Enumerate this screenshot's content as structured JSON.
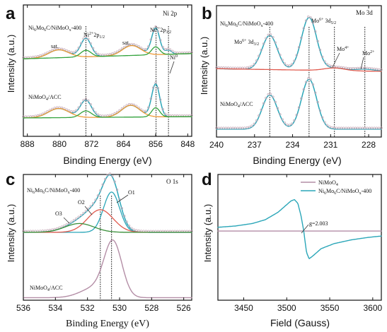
{
  "chart_data": [
    {
      "letter": "a",
      "type": "line",
      "title": "Ni 2p",
      "xlabel": "Binding Energy (eV)",
      "ylabel": "Intensity (a.u.)",
      "xlim": [
        889,
        847
      ],
      "xticks": [
        888,
        880,
        872,
        864,
        856,
        848
      ],
      "ylim": [
        0,
        1
      ],
      "legend": "none",
      "sample_labels": [
        "Ni6Mo6C/NiMoOx-400",
        "NiMoO4/ACC"
      ],
      "annotations": [
        "sat.",
        "Ni2+2p1/2",
        "sat.",
        "Ni2+2p3/2",
        "Ni0"
      ],
      "ref_lines": [
        873.4,
        855.9,
        852.8
      ],
      "series": [
        {
          "name": "Top fit",
          "kind": "fit",
          "color": "#2aa6b8",
          "baseline": [
            [
              889,
              0.59
            ],
            [
              879,
              0.6
            ],
            [
              869,
              0.61
            ],
            [
              860,
              0.62
            ],
            [
              847,
              0.63
            ]
          ],
          "peaks": [
            [
              880.2,
              0.06,
              2.5
            ],
            [
              873.4,
              0.14,
              1.3
            ],
            [
              862.0,
              0.075,
              2.3
            ],
            [
              856.0,
              0.2,
              1.0
            ],
            [
              852.8,
              0.03,
              0.8
            ]
          ]
        },
        {
          "name": "Top sat.",
          "kind": "component",
          "color": "#ee9a36",
          "baseline": [
            [
              889,
              0.59
            ],
            [
              847,
              0.63
            ]
          ],
          "peaks": [
            [
              880.2,
              0.06,
              2.5
            ],
            [
              862.0,
              0.075,
              2.3
            ]
          ]
        },
        {
          "name": "Top Ni2+",
          "kind": "component",
          "color": "#33a33d",
          "baseline": [
            [
              889,
              0.59
            ],
            [
              847,
              0.63
            ]
          ],
          "peaks": [
            [
              873.4,
              0.05,
              1.3
            ],
            [
              856.0,
              0.06,
              1.0
            ]
          ]
        },
        {
          "name": "Bottom fit",
          "kind": "fit",
          "color": "#2aa6b8",
          "baseline": [
            [
              889,
              0.14
            ],
            [
              847,
              0.15
            ]
          ],
          "peaks": [
            [
              880.2,
              0.07,
              2.6
            ],
            [
              873.4,
              0.13,
              1.4
            ],
            [
              862.2,
              0.09,
              2.3
            ],
            [
              856.0,
              0.25,
              1.0
            ]
          ]
        },
        {
          "name": "Bottom sat.",
          "kind": "component",
          "color": "#ee9a36",
          "baseline": [
            [
              889,
              0.14
            ],
            [
              847,
              0.15
            ]
          ],
          "peaks": [
            [
              880.2,
              0.07,
              2.6
            ],
            [
              862.2,
              0.09,
              2.3
            ]
          ]
        },
        {
          "name": "Bottom Ni2+",
          "kind": "component",
          "color": "#33a33d",
          "baseline": [
            [
              889,
              0.14
            ],
            [
              847,
              0.15
            ]
          ],
          "peaks": [
            [
              873.4,
              0.05,
              1.4
            ],
            [
              856.0,
              0.07,
              1.0
            ]
          ]
        }
      ]
    },
    {
      "letter": "b",
      "type": "line",
      "title": "Mo 3d",
      "xlabel": "Binding Energy (eV)",
      "ylabel": "Intensity (a.u.)",
      "xlim": [
        240,
        227
      ],
      "xticks": [
        240,
        237,
        234,
        231,
        228
      ],
      "ylim": [
        0,
        1
      ],
      "legend": "none",
      "sample_labels": [
        "Ni6Mo6C/NiMoOx-400",
        "NiMoO4/ACC"
      ],
      "annotations": [
        "Mo6+ 3d3/2",
        "Mo6+ 3d5/2",
        "Mo4+",
        "Mo2+"
      ],
      "ref_lines": [
        235.8,
        232.7,
        230.7,
        228.3
      ],
      "series": [
        {
          "name": "Top fit",
          "kind": "fit",
          "color": "#2aa6b8",
          "baseline": [
            [
              240,
              0.52
            ],
            [
              227,
              0.5
            ]
          ],
          "peaks": [
            [
              235.8,
              0.26,
              0.6
            ],
            [
              232.7,
              0.4,
              0.6
            ],
            [
              230.7,
              0.02,
              0.8
            ],
            [
              228.3,
              0.015,
              0.8
            ]
          ]
        },
        {
          "name": "Top Mo4+",
          "kind": "component",
          "color": "#e05a4e",
          "baseline": [
            [
              240,
              0.52
            ],
            [
              227,
              0.5
            ]
          ],
          "peaks": [
            [
              230.7,
              0.02,
              0.8
            ]
          ]
        },
        {
          "name": "Bottom fit",
          "kind": "fit",
          "color": "#2aa6b8",
          "baseline": [
            [
              240,
              0.06
            ],
            [
              227,
              0.06
            ]
          ],
          "peaks": [
            [
              235.8,
              0.26,
              0.6
            ],
            [
              232.7,
              0.38,
              0.6
            ]
          ]
        }
      ]
    },
    {
      "letter": "c",
      "type": "line",
      "title": "O 1s",
      "xlabel": "Binding Energy (eV)",
      "ylabel": "Intensity (a.u.)",
      "xlim": [
        536,
        525.5
      ],
      "xticks": [
        536,
        534,
        532,
        530,
        528,
        526
      ],
      "ylim": [
        0,
        1
      ],
      "legend": "none",
      "sample_labels": [
        "Ni6Mo6C/NiMoOx-400",
        "NiMoO4/ACC"
      ],
      "annotations": [
        "O1",
        "O2",
        "O3"
      ],
      "ref_lines": [
        531.2,
        530.5
      ],
      "series": [
        {
          "name": "Top fit",
          "kind": "fit",
          "color": "#2aa6b8",
          "baseline": [
            [
              536,
              0.54
            ],
            [
              525.5,
              0.54
            ]
          ],
          "peaks": [
            [
              530.5,
              0.32,
              0.5
            ],
            [
              531.2,
              0.18,
              0.8
            ],
            [
              532.5,
              0.07,
              0.9
            ]
          ]
        },
        {
          "name": "O1",
          "kind": "component",
          "color": "#2aa6b8",
          "baseline": [
            [
              536,
              0.54
            ],
            [
              525.5,
              0.54
            ]
          ],
          "peaks": [
            [
              530.5,
              0.32,
              0.5
            ]
          ]
        },
        {
          "name": "O2",
          "kind": "component",
          "color": "#e05a4e",
          "baseline": [
            [
              536,
              0.54
            ],
            [
              525.5,
              0.54
            ]
          ],
          "peaks": [
            [
              531.2,
              0.18,
              0.8
            ]
          ]
        },
        {
          "name": "O3",
          "kind": "component",
          "color": "#3a8f3a",
          "baseline": [
            [
              536,
              0.54
            ],
            [
              525.5,
              0.54
            ]
          ],
          "peaks": [
            [
              532.5,
              0.07,
              0.9
            ]
          ]
        },
        {
          "name": "NiMoO4/ACC",
          "kind": "data",
          "color": "#b48ea6",
          "baseline": [
            [
              536,
              0.02
            ],
            [
              525.5,
              0.02
            ]
          ],
          "peaks": [
            [
              530.4,
              0.42,
              0.55
            ],
            [
              531.5,
              0.08,
              0.9
            ]
          ]
        }
      ]
    },
    {
      "letter": "d",
      "type": "line",
      "xlabel": "Field (Gauss)",
      "ylabel": "Intensity (a.u.)",
      "xlim": [
        3420,
        3610
      ],
      "xticks": [
        3450,
        3500,
        3550,
        3600
      ],
      "ylim": [
        0,
        1
      ],
      "legend": "top-right",
      "annotations": [
        "g=2.003"
      ],
      "series": [
        {
          "name": "NiMoO4",
          "color": "#b48ea6",
          "points": [
            [
              3420,
              0.55
            ],
            [
              3610,
              0.55
            ]
          ]
        },
        {
          "name": "Ni6Mo6C/NiMoOx-400",
          "color": "#2aa6b8",
          "points": [
            [
              3420,
              0.58
            ],
            [
              3440,
              0.59
            ],
            [
              3460,
              0.61
            ],
            [
              3475,
              0.64
            ],
            [
              3490,
              0.7
            ],
            [
              3500,
              0.76
            ],
            [
              3505,
              0.79
            ],
            [
              3509,
              0.8
            ],
            [
              3513,
              0.77
            ],
            [
              3517,
              0.66
            ],
            [
              3520,
              0.54
            ],
            [
              3523,
              0.38
            ],
            [
              3526,
              0.33
            ],
            [
              3530,
              0.35
            ],
            [
              3540,
              0.41
            ],
            [
              3555,
              0.45
            ],
            [
              3575,
              0.48
            ],
            [
              3595,
              0.5
            ],
            [
              3610,
              0.51
            ]
          ]
        }
      ]
    }
  ],
  "panels": [
    {
      "letter": "a",
      "title": "Ni 2p",
      "xlabel": "Binding Energy (eV)",
      "ylabel": "Intensity (a.u.)",
      "xticks": [
        "888",
        "880",
        "872",
        "864",
        "856",
        "848"
      ],
      "sample_top": {
        "base": "Ni",
        "s1": "6",
        "mid": "Mo",
        "s2": "6",
        "tail1": "C/NiMoO",
        "s3": "x",
        "tail2": "-400"
      },
      "sample_bottom": {
        "base": "NiMoO",
        "s1": "4",
        "tail": "/ACC"
      },
      "ann": {
        "sat1": "sat.",
        "sat2": "sat.",
        "p12_main": "Ni",
        "p12_sup": "2+",
        "p12_mid": "2p",
        "p12_sub": "1/2",
        "p32_main": "Ni",
        "p32_sup": "2+",
        "p32_mid": "2p",
        "p32_sub": "3/2",
        "ni0_main": "Ni",
        "ni0_sup": "0"
      }
    },
    {
      "letter": "b",
      "title": "Mo 3d",
      "xlabel": "Binding Energy (eV)",
      "ylabel": "Intensity (a.u.)",
      "xticks": [
        "240",
        "237",
        "234",
        "231",
        "228"
      ],
      "sample_top": {
        "base": "Ni",
        "s1": "6",
        "mid": "Mo",
        "s2": "6",
        "tail1": "C/NiMoO",
        "s3": "x",
        "tail2": "-400"
      },
      "sample_bottom": {
        "base": "NiMoO",
        "s1": "4",
        "tail": "/ACC"
      },
      "ann": {
        "m32_main": "Mo",
        "m32_sup": "6+",
        "m32_mid": " 3d",
        "m32_sub": "3/2",
        "m52_main": "Mo",
        "m52_sup": "6+",
        "m52_mid": " 3d",
        "m52_sub": "5/2",
        "m4_main": "Mo",
        "m4_sup": "4+",
        "m2_main": "Mo",
        "m2_sup": "2+"
      }
    },
    {
      "letter": "c",
      "title": "O 1s",
      "xlabel": "Binding Energy (eV)",
      "ylabel": "Intensity (a.u.)",
      "xticks": [
        "536",
        "534",
        "532",
        "530",
        "528",
        "526"
      ],
      "sample_top": {
        "base": "Ni",
        "s1": "6",
        "mid": "Mo",
        "s2": "6",
        "tail1": "C/NiMoO",
        "s3": "x",
        "tail2": "-400"
      },
      "sample_bottom": {
        "base": "NiMoO",
        "s1": "4",
        "tail": "/ACC"
      },
      "ann": {
        "o1": "O1",
        "o2": "O2",
        "o3": "O3"
      }
    },
    {
      "letter": "d",
      "xlabel": "Field (Gauss)",
      "ylabel": "Intensity (a.u.)",
      "xticks": [
        "3450",
        "3500",
        "3550",
        "3600"
      ],
      "legend": {
        "s1_base": "NiMoO",
        "s1_sub": "4",
        "s2_base": "Ni",
        "s2_s1": "6",
        "s2_mid": "Mo",
        "s2_s2": "6",
        "s2_tail1": "C/NiMoO",
        "s2_s3": "x",
        "s2_tail2": "-400"
      },
      "ann": {
        "g": "g=2.003"
      }
    }
  ]
}
